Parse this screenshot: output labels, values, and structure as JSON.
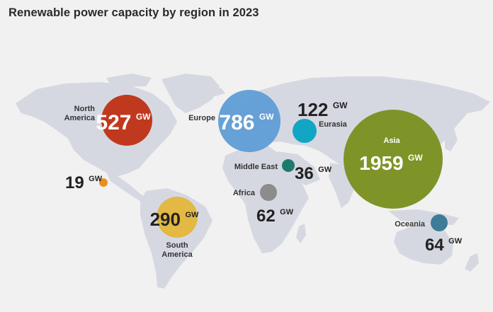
{
  "title": "Renewable power capacity by region in 2023",
  "unit": "GW",
  "colors": {
    "background": "#f1f1f1",
    "land": "#d6d8e1",
    "north_america": "#c0391f",
    "europe": "#5b9bd5",
    "eurasia": "#12a6c4",
    "asia": "#7e9428",
    "central_america": "#e8901e",
    "middle_east": "#1f7a6e",
    "africa": "#8c8c8c",
    "south_america": "#e3b843",
    "oceania": "#3e7b99"
  },
  "regions": {
    "north_america": {
      "name_line1": "North",
      "name_line2": "America",
      "value": "527"
    },
    "europe": {
      "name": "Europe",
      "value": "786"
    },
    "eurasia": {
      "name": "Eurasia",
      "value": "122"
    },
    "asia": {
      "name": "Asia",
      "value": "1959"
    },
    "central_america": {
      "value": "19"
    },
    "middle_east": {
      "name": "Middle East",
      "value": "36"
    },
    "africa": {
      "name": "Africa",
      "value": "62"
    },
    "south_america": {
      "name_line1": "South",
      "name_line2": "America",
      "value": "290"
    },
    "oceania": {
      "name": "Oceania",
      "value": "64"
    }
  }
}
